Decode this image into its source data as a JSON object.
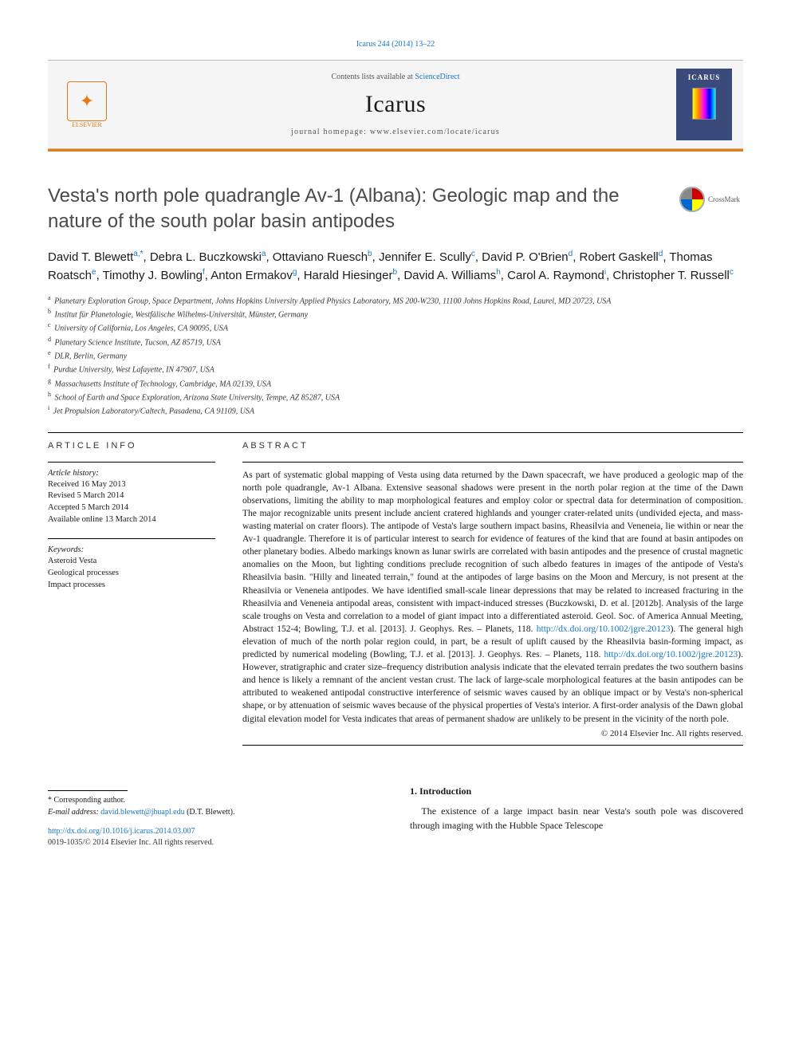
{
  "citation": "Icarus 244 (2014) 13–22",
  "header": {
    "contents_prefix": "Contents lists available at ",
    "contents_link": "ScienceDirect",
    "journal": "Icarus",
    "homepage": "journal homepage: www.elsevier.com/locate/icarus",
    "publisher": "ELSEVIER",
    "cover_title": "ICARUS"
  },
  "title": "Vesta's north pole quadrangle Av-1 (Albana): Geologic map and the nature of the south polar basin antipodes",
  "crossmark": "CrossMark",
  "authors_html": "David T. Blewett<sup>a,*</sup>, Debra L. Buczkowski<sup>a</sup>, Ottaviano Ruesch<sup>b</sup>, Jennifer E. Scully<sup>c</sup>, David P. O'Brien<sup>d</sup>, Robert Gaskell<sup>d</sup>, Thomas Roatsch<sup>e</sup>, Timothy J. Bowling<sup>f</sup>, Anton Ermakov<sup>g</sup>, Harald Hiesinger<sup>b</sup>, David A. Williams<sup>h</sup>, Carol A. Raymond<sup>i</sup>, Christopher T. Russell<sup>c</sup>",
  "affiliations": [
    {
      "key": "a",
      "text": "Planetary Exploration Group, Space Department, Johns Hopkins University Applied Physics Laboratory, MS 200-W230, 11100 Johns Hopkins Road, Laurel, MD 20723, USA"
    },
    {
      "key": "b",
      "text": "Institut für Planetologie, Westfälische Wilhelms-Universität, Münster, Germany"
    },
    {
      "key": "c",
      "text": "University of California, Los Angeles, CA 90095, USA"
    },
    {
      "key": "d",
      "text": "Planetary Science Institute, Tucson, AZ 85719, USA"
    },
    {
      "key": "e",
      "text": "DLR, Berlin, Germany"
    },
    {
      "key": "f",
      "text": "Purdue University, West Lafayette, IN 47907, USA"
    },
    {
      "key": "g",
      "text": "Massachusetts Institute of Technology, Cambridge, MA 02139, USA"
    },
    {
      "key": "h",
      "text": "School of Earth and Space Exploration, Arizona State University, Tempe, AZ 85287, USA"
    },
    {
      "key": "i",
      "text": "Jet Propulsion Laboratory/Caltech, Pasadena, CA 91109, USA"
    }
  ],
  "info": {
    "head": "ARTICLE INFO",
    "history_label": "Article history:",
    "history": [
      "Received 16 May 2013",
      "Revised 5 March 2014",
      "Accepted 5 March 2014",
      "Available online 13 March 2014"
    ],
    "keywords_label": "Keywords:",
    "keywords": [
      "Asteroid Vesta",
      "Geological processes",
      "Impact processes"
    ]
  },
  "abstract": {
    "head": "ABSTRACT",
    "text": "As part of systematic global mapping of Vesta using data returned by the Dawn spacecraft, we have produced a geologic map of the north pole quadrangle, Av-1 Albana. Extensive seasonal shadows were present in the north polar region at the time of the Dawn observations, limiting the ability to map morphological features and employ color or spectral data for determination of composition. The major recognizable units present include ancient cratered highlands and younger crater-related units (undivided ejecta, and mass-wasting material on crater floors). The antipode of Vesta's large southern impact basins, Rheasilvia and Veneneia, lie within or near the Av-1 quadrangle. Therefore it is of particular interest to search for evidence of features of the kind that are found at basin antipodes on other planetary bodies. Albedo markings known as lunar swirls are correlated with basin antipodes and the presence of crustal magnetic anomalies on the Moon, but lighting conditions preclude recognition of such albedo features in images of the antipode of Vesta's Rheasilvia basin. \"Hilly and lineated terrain,\" found at the antipodes of large basins on the Moon and Mercury, is not present at the Rheasilvia or Veneneia antipodes. We have identified small-scale linear depressions that may be related to increased fracturing in the Rheasilvia and Veneneia antipodal areas, consistent with impact-induced stresses (Buczkowski, D. et al. [2012b]. Analysis of the large scale troughs on Vesta and correlation to a model of giant impact into a differentiated asteroid. Geol. Soc. of America Annual Meeting, Abstract 152-4; Bowling, T.J. et al. [2013]. J. Geophys. Res. – Planets, 118. http://dx.doi.org/10.1002/jgre.20123). The general high elevation of much of the north polar region could, in part, be a result of uplift caused by the Rheasilvia basin-forming impact, as predicted by numerical modeling (Bowling, T.J. et al. [2013]. J. Geophys. Res. – Planets, 118. http://dx.doi.org/10.1002/jgre.20123). However, stratigraphic and crater size–frequency distribution analysis indicate that the elevated terrain predates the two southern basins and hence is likely a remnant of the ancient vestan crust. The lack of large-scale morphological features at the basin antipodes can be attributed to weakened antipodal constructive interference of seismic waves caused by an oblique impact or by Vesta's non-spherical shape, or by attenuation of seismic waves because of the physical properties of Vesta's interior. A first-order analysis of the Dawn global digital elevation model for Vesta indicates that areas of permanent shadow are unlikely to be present in the vicinity of the north pole.",
    "copyright": "© 2014 Elsevier Inc. All rights reserved."
  },
  "intro": {
    "head": "1. Introduction",
    "para": "The existence of a large impact basin near Vesta's south pole was discovered through imaging with the Hubble Space Telescope"
  },
  "corr": {
    "star": "* Corresponding author.",
    "email_label": "E-mail address: ",
    "email": "david.blewett@jhuapl.edu",
    "email_who": " (D.T. Blewett)."
  },
  "doi": {
    "url": "http://dx.doi.org/10.1016/j.icarus.2014.03.007",
    "issn": "0019-1035/© 2014 Elsevier Inc. All rights reserved."
  },
  "colors": {
    "link": "#1976c4",
    "accent": "#e67a17",
    "text": "#1a1a1a",
    "cover_bg": "#3a4a7a"
  }
}
